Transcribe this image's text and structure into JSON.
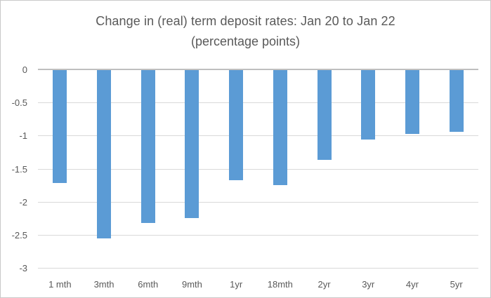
{
  "chart_data": {
    "type": "bar",
    "title": "Change in (real) term deposit rates: Jan 20 to Jan 22",
    "subtitle": "(percentage points)",
    "categories": [
      "1 mth",
      "3mth",
      "6mth",
      "9mth",
      "1yr",
      "18mth",
      "2yr",
      "3yr",
      "4yr",
      "5yr"
    ],
    "values": [
      -1.72,
      -2.55,
      -2.32,
      -2.25,
      -1.67,
      -1.75,
      -1.37,
      -1.06,
      -0.98,
      -0.94
    ],
    "xlabel": "",
    "ylabel": "",
    "ylim": [
      -3,
      0
    ],
    "yticks": [
      0,
      -0.5,
      -1,
      -1.5,
      -2,
      -2.5,
      -3
    ],
    "ytick_labels": [
      "0",
      "-0.5",
      "-1",
      "-1.5",
      "-2",
      "-2.5",
      "-3"
    ],
    "grid": true,
    "legend_position": "none",
    "bar_color": "#5B9BD5",
    "grid_color": "#D9D9D9",
    "axis_color": "#BFBFBF",
    "text_color": "#595959"
  }
}
